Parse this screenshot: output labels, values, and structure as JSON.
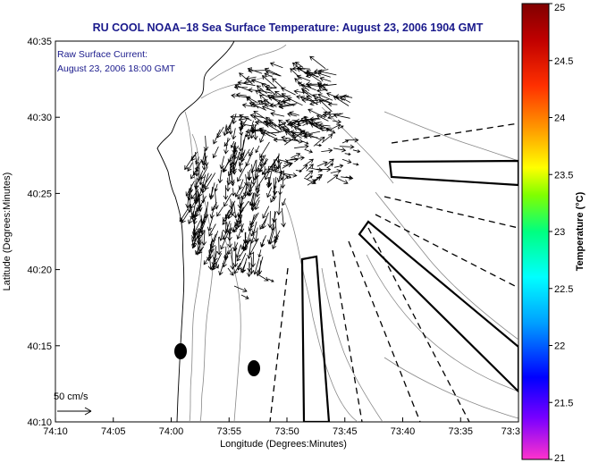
{
  "chart_data": {
    "type": "map",
    "title": "RU COOL  NOAA–18  Sea Surface Temperature:  August 23, 2006 1904 GMT",
    "inset_lines": [
      "Raw Surface Current:",
      "August 23, 2006 18:00 GMT"
    ],
    "xlabel": "Longitude (Degrees:Minutes)",
    "ylabel": "Latitude (Degrees:Minutes)",
    "x_tick_labels": [
      "74:10",
      "74:05",
      "74:00",
      "73:55",
      "73:50",
      "73:45",
      "73:40",
      "73:35",
      "73:3"
    ],
    "y_tick_labels": [
      "40:35",
      "40:30",
      "40:25",
      "40:20",
      "40:15",
      "40:10"
    ],
    "xlim_min": [
      -74.1667,
      -73.5
    ],
    "ylim_min": [
      40.1667,
      40.5833
    ],
    "colorbar": {
      "label": "Temperature (°C)",
      "range": [
        21,
        25
      ],
      "tick_labels": [
        "25",
        "24.5",
        "24",
        "23.5",
        "23",
        "22.5",
        "22",
        "21.5",
        "21"
      ]
    },
    "scale_arrow": {
      "label": "50 cm/s",
      "speed_cm_s": 50
    },
    "grid": false,
    "legend": "none",
    "colors": {
      "title_text": "#1a1a8c",
      "land_fill": "#ffffff",
      "arrows": "#000000",
      "contours": "#888888",
      "colormap": [
        "#ff33cc",
        "#7a00ff",
        "#0000ff",
        "#00a0ff",
        "#00ffff",
        "#00ff80",
        "#80ff00",
        "#ffff00",
        "#ffa000",
        "#ff3000",
        "#c00000",
        "#800000"
      ]
    },
    "masked_markers_deg": [
      {
        "lon": -73.9833,
        "lat": 40.2444
      },
      {
        "lon": -73.9,
        "lat": 40.2222
      }
    ],
    "current_vectors": {
      "units": "cm/s",
      "approx_direction": "predominantly toward the south-southwest",
      "region_center_deg": {
        "lon": -73.93,
        "lat": 40.43
      }
    },
    "polygons_deg": [
      {
        "name": "box-north",
        "style": "solid",
        "points": [
          [
            -73.6667,
            40.45
          ],
          [
            -73.5,
            40.4556
          ],
          [
            -73.5,
            40.4333
          ],
          [
            -73.6667,
            40.44
          ]
        ]
      },
      {
        "name": "box-diagonal",
        "style": "solid",
        "points": [
          [
            -73.7417,
            40.3722
          ],
          [
            -73.7333,
            40.3833
          ],
          [
            -73.5,
            40.2389
          ],
          [
            -73.5,
            40.2111
          ]
        ]
      },
      {
        "name": "box-south",
        "style": "solid",
        "points": [
          [
            -73.8611,
            40.3389
          ],
          [
            -73.8444,
            40.3417
          ],
          [
            -73.8333,
            40.1667
          ],
          [
            -73.8556,
            40.1667
          ]
        ]
      }
    ]
  }
}
